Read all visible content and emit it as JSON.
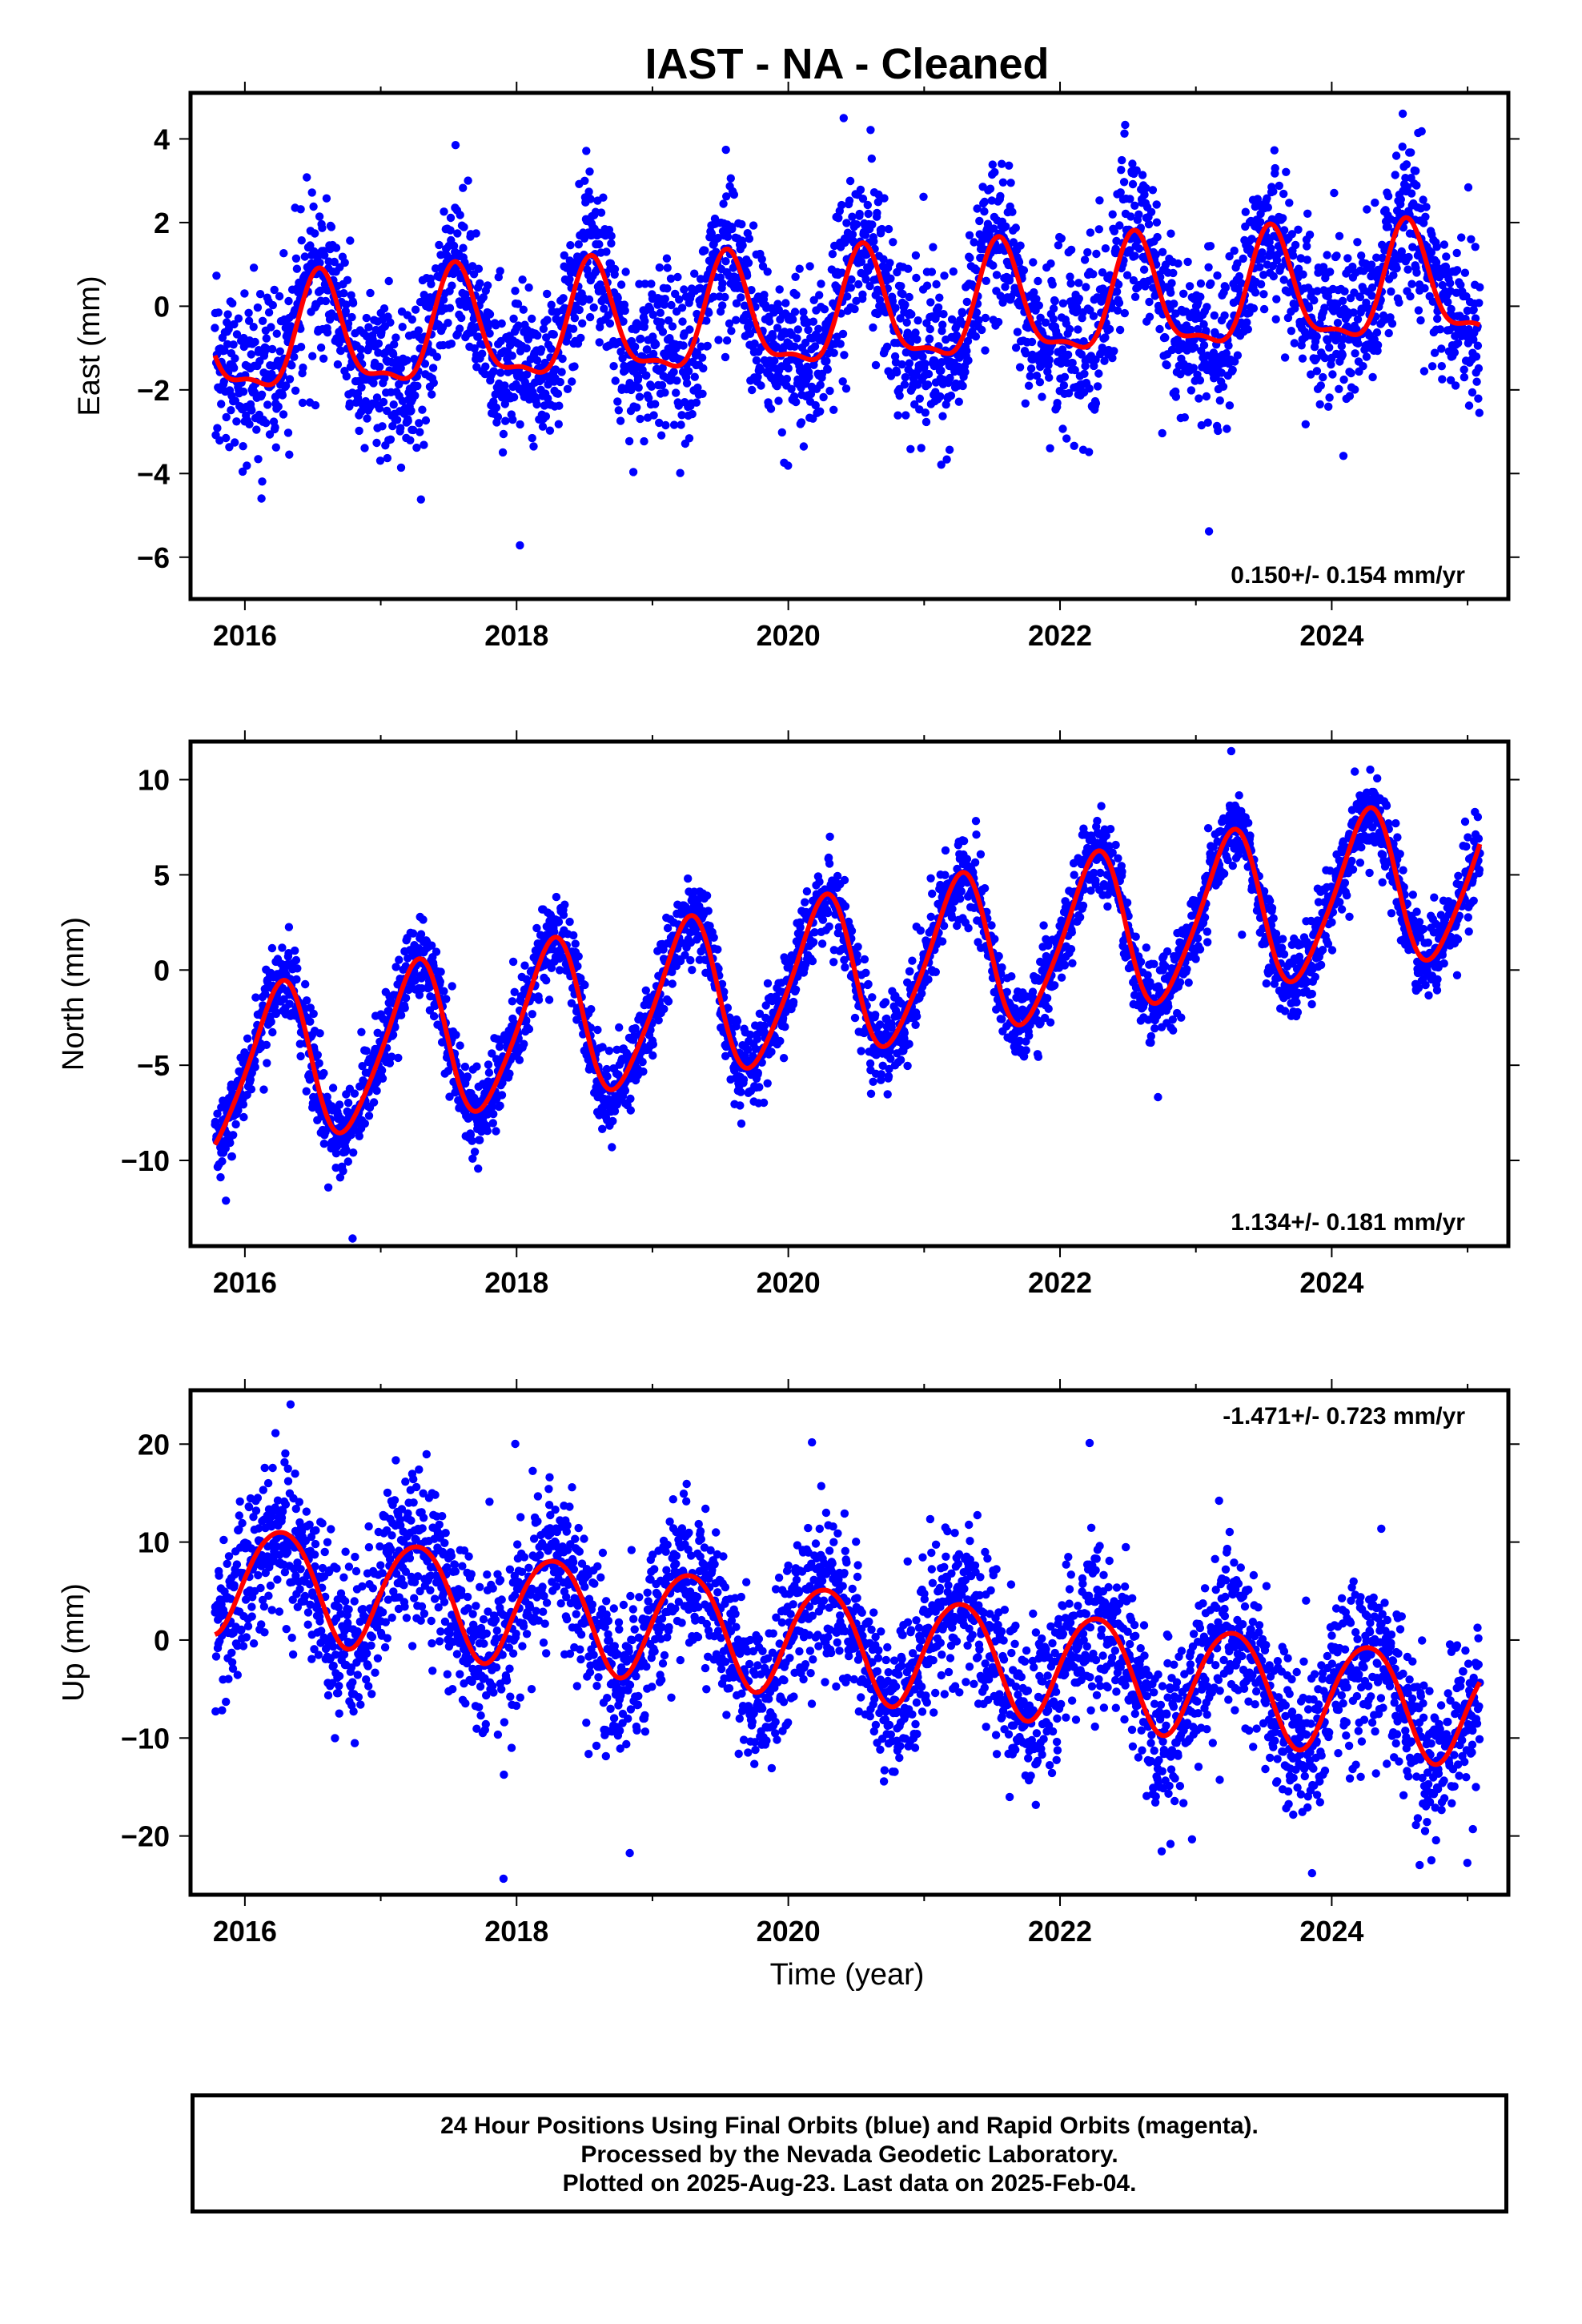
{
  "figure": {
    "title": "IAST  - NA - Cleaned",
    "xlabel": "Time (year)",
    "footer_lines": [
      "24 Hour Positions Using Final Orbits (blue) and Rapid Orbits (magenta).",
      "Processed by the Nevada Geodetic Laboratory.",
      "Plotted on 2025-Aug-23. Last data on 2025-Feb-04."
    ],
    "colors": {
      "points": "#0000ff",
      "model": "#ff0000",
      "frame": "#000000"
    }
  },
  "chart_data": [
    {
      "type": "scatter",
      "component": "east",
      "ylabel": "East (mm)",
      "rate_text": "0.150+/- 0.154 mm/yr",
      "rate_position": "bottom-right",
      "xlim": [
        2015.6,
        2025.3
      ],
      "ylim": [
        -7.0,
        5.1
      ],
      "xticks": [
        2016,
        2018,
        2020,
        2022,
        2024
      ],
      "xtick_labels": [
        "2016",
        "2018",
        "2020",
        "2022",
        "2024"
      ],
      "yticks": [
        -6,
        -4,
        -2,
        0,
        2,
        4
      ],
      "ytick_labels": [
        "−6",
        "−4",
        "−2",
        "0",
        "2",
        "4"
      ],
      "data_span": [
        2015.78,
        2025.09
      ],
      "model": {
        "offset": -0.25,
        "rate_mm_per_yr": 0.15,
        "reference_epoch": 2020.4,
        "annual_amp": 1.3,
        "annual_phase_deg": -110,
        "semiannual_amp": 0.45,
        "semiannual_phase_deg": 60
      },
      "scatter_sigma": 0.95,
      "n_points": 3350,
      "grid": false
    },
    {
      "type": "scatter",
      "component": "north",
      "ylabel": "North (mm)",
      "rate_text": "1.134+/- 0.181 mm/yr",
      "rate_position": "bottom-right",
      "xlim": [
        2015.6,
        2025.3
      ],
      "ylim": [
        -14.5,
        12.0
      ],
      "xticks": [
        2016,
        2018,
        2020,
        2022,
        2024
      ],
      "xtick_labels": [
        "2016",
        "2018",
        "2020",
        "2022",
        "2024"
      ],
      "yticks": [
        -10,
        -5,
        0,
        5,
        10
      ],
      "ytick_labels": [
        "−10",
        "−5",
        "0",
        "5",
        "10"
      ],
      "data_span": [
        2015.78,
        2025.09
      ],
      "model": {
        "offset": -0.3,
        "rate_mm_per_yr": 1.134,
        "reference_epoch": 2020.4,
        "annual_amp": 4.1,
        "annual_phase_deg": 0,
        "semiannual_amp": 0.6,
        "semiannual_phase_deg": 200
      },
      "scatter_sigma": 1.05,
      "n_points": 3350,
      "grid": false
    },
    {
      "type": "scatter",
      "component": "up",
      "ylabel": "Up (mm)",
      "rate_text": "-1.471+/- 0.723 mm/yr",
      "rate_position": "top-right",
      "xlim": [
        2015.6,
        2025.3
      ],
      "ylim": [
        -26.0,
        25.5
      ],
      "xticks": [
        2016,
        2018,
        2020,
        2022,
        2024
      ],
      "xtick_labels": [
        "2016",
        "2018",
        "2020",
        "2022",
        "2024"
      ],
      "yticks": [
        -20,
        -10,
        0,
        10,
        20
      ],
      "ytick_labels": [
        "−20",
        "−10",
        "0",
        "10",
        "20"
      ],
      "data_span": [
        2015.78,
        2025.09
      ],
      "model": {
        "offset": -0.2,
        "rate_mm_per_yr": -1.471,
        "reference_epoch": 2020.4,
        "annual_amp": 5.6,
        "annual_phase_deg": -5,
        "semiannual_amp": 0.5,
        "semiannual_phase_deg": 90
      },
      "scatter_sigma": 4.0,
      "n_points": 3350,
      "grid": false
    }
  ]
}
